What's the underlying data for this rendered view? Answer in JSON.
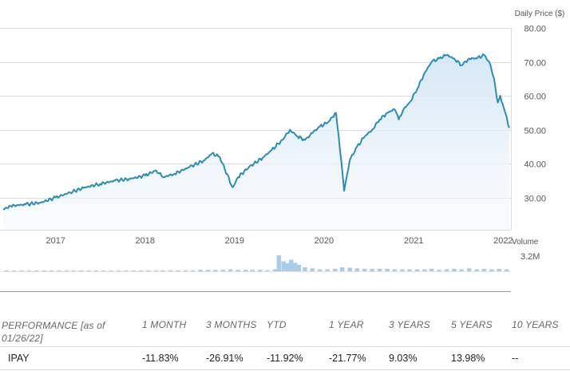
{
  "chart_data": [
    {
      "type": "area",
      "ylabel": "Daily Price ($)",
      "yticks": [
        "80.00",
        "70.00",
        "60.00",
        "50.00",
        "40.00",
        "30.00"
      ],
      "ytick_values": [
        80,
        70,
        60,
        50,
        40,
        30
      ],
      "ylim": [
        20.5,
        80
      ],
      "xticks": [
        "2017",
        "2018",
        "2019",
        "2020",
        "2021",
        "2022"
      ],
      "xtick_dates": [
        "2017-01-01",
        "2018-01-01",
        "2019-01-01",
        "2020-01-01",
        "2021-01-01",
        "2022-01-01"
      ],
      "xlim": [
        "2016-06-01",
        "2022-01-26"
      ],
      "grid": true,
      "color": "#2a8db5",
      "series": [
        {
          "x": [
            "2016-06-01",
            "2016-07-01",
            "2016-09-01",
            "2016-11-01",
            "2017-01-01",
            "2017-03-01",
            "2017-05-01",
            "2017-07-01",
            "2017-09-01",
            "2017-11-01",
            "2018-01-01",
            "2018-02-15",
            "2018-03-15",
            "2018-05-01",
            "2018-07-01",
            "2018-09-01",
            "2018-10-01",
            "2018-11-01",
            "2018-12-24",
            "2019-01-15",
            "2019-03-01",
            "2019-05-01",
            "2019-06-01",
            "2019-07-15",
            "2019-08-15",
            "2019-09-15",
            "2019-10-15",
            "2019-11-15",
            "2019-12-15",
            "2020-01-15",
            "2020-02-19",
            "2020-03-01",
            "2020-03-23",
            "2020-04-15",
            "2020-05-15",
            "2020-06-15",
            "2020-07-15",
            "2020-08-15",
            "2020-09-15",
            "2020-10-15",
            "2020-11-01",
            "2020-11-20",
            "2020-12-15",
            "2021-01-15",
            "2021-02-16",
            "2021-03-15",
            "2021-04-15",
            "2021-05-15",
            "2021-06-15",
            "2021-07-15",
            "2021-08-15",
            "2021-09-15",
            "2021-10-15",
            "2021-11-05",
            "2021-11-25",
            "2021-12-10",
            "2021-12-20",
            "2022-01-05",
            "2022-01-26"
          ],
          "y": [
            26.5,
            27.5,
            28,
            28.5,
            30,
            31.5,
            33,
            34,
            35,
            35.5,
            36.5,
            38,
            36,
            37,
            39,
            41,
            43,
            42,
            33,
            36,
            39,
            42,
            44,
            47,
            50,
            48,
            47,
            49,
            51,
            52,
            55,
            48,
            32,
            41,
            45,
            48,
            50,
            53,
            55,
            56,
            53,
            56,
            58,
            62,
            67,
            70,
            71,
            72,
            71,
            69,
            71,
            71,
            72,
            70,
            65,
            58,
            60,
            56,
            50.5
          ]
        }
      ]
    },
    {
      "type": "bar",
      "ylabel": "Volume",
      "max_label": "3.2M",
      "ylim": [
        0,
        3.2
      ],
      "unit": "M",
      "color": "#a9cde8",
      "x": [
        "2016-06-15",
        "2016-07-15",
        "2016-08-15",
        "2016-09-15",
        "2016-10-15",
        "2016-11-15",
        "2016-12-15",
        "2017-01-15",
        "2017-02-15",
        "2017-03-15",
        "2017-04-15",
        "2017-05-15",
        "2017-06-15",
        "2017-07-15",
        "2017-08-15",
        "2017-09-15",
        "2017-10-15",
        "2017-11-15",
        "2017-12-15",
        "2018-01-15",
        "2018-02-15",
        "2018-03-15",
        "2018-04-15",
        "2018-05-15",
        "2018-06-15",
        "2018-07-15",
        "2018-08-15",
        "2018-09-15",
        "2018-10-15",
        "2018-11-15",
        "2018-12-15",
        "2019-01-15",
        "2019-02-15",
        "2019-03-15",
        "2019-04-15",
        "2019-05-15",
        "2019-06-15",
        "2019-07-01",
        "2019-07-20",
        "2019-08-05",
        "2019-08-20",
        "2019-09-05",
        "2019-09-20",
        "2019-10-15",
        "2019-11-15",
        "2019-12-15",
        "2020-01-15",
        "2020-02-15",
        "2020-03-15",
        "2020-04-15",
        "2020-05-15",
        "2020-06-15",
        "2020-07-15",
        "2020-08-15",
        "2020-09-15",
        "2020-10-15",
        "2020-11-15",
        "2020-12-15",
        "2021-01-15",
        "2021-02-15",
        "2021-03-15",
        "2021-04-15",
        "2021-05-15",
        "2021-06-15",
        "2021-07-15",
        "2021-08-15",
        "2021-09-15",
        "2021-10-15",
        "2021-11-15",
        "2021-12-15",
        "2022-01-15"
      ],
      "values": [
        0.1,
        0.1,
        0,
        0.1,
        0.1,
        0.1,
        0,
        0.1,
        0.1,
        0,
        0.1,
        0.1,
        0,
        0.1,
        0.1,
        0.1,
        0.1,
        0.1,
        0.1,
        0.2,
        0.2,
        0.2,
        0.2,
        0.2,
        0.2,
        0.2,
        0.3,
        0.3,
        0.3,
        0.3,
        0.4,
        0.3,
        0.3,
        0.3,
        0.3,
        0.2,
        0.4,
        3.2,
        2.0,
        1.6,
        2.3,
        1.7,
        1.3,
        0.8,
        0.6,
        0.4,
        0.4,
        0.5,
        0.8,
        0.7,
        0.6,
        0.5,
        0.5,
        0.5,
        0.5,
        0.4,
        0.4,
        0.4,
        0.4,
        0.4,
        0.5,
        0.3,
        0.4,
        0.5,
        0.4,
        0.6,
        0.4,
        0.5,
        0.4,
        0.5,
        0.4
      ]
    }
  ],
  "performance": {
    "headers": [
      "PERFORMANCE [as of 01/26/22]",
      "1 MONTH",
      "3 MONTHS",
      "YTD",
      "1 YEAR",
      "3 YEARS",
      "5 YEARS",
      "10 YEARS"
    ],
    "row": [
      "IPAY",
      "-11.83%",
      "-26.91%",
      "-11.92%",
      "-21.77%",
      "9.03%",
      "13.98%",
      "--"
    ]
  }
}
